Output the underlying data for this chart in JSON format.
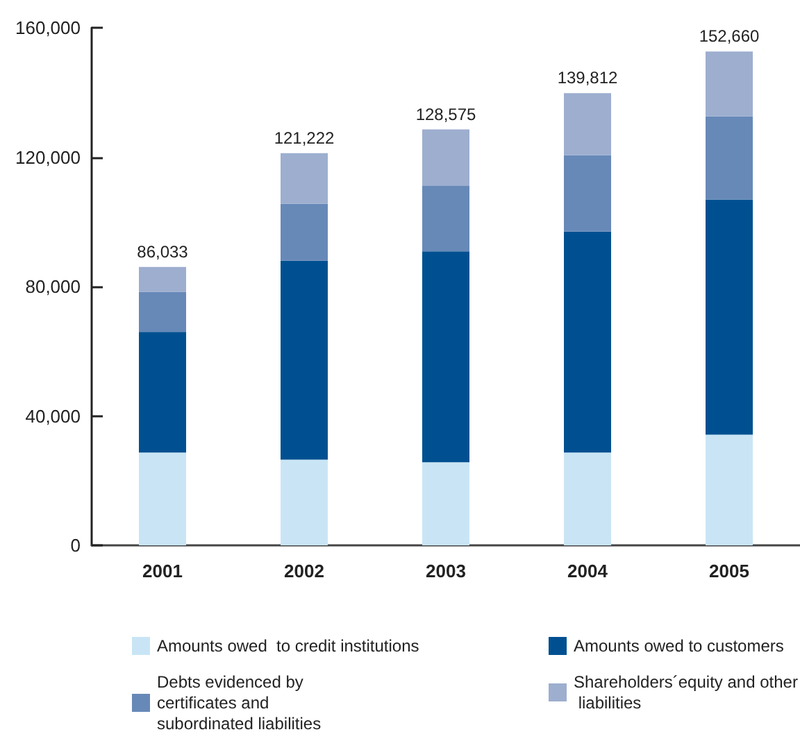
{
  "chart_data": {
    "type": "bar",
    "stacked": true,
    "categories": [
      "2001",
      "2002",
      "2003",
      "2004",
      "2005"
    ],
    "series": [
      {
        "name": "Amounts owed  to credit institutions",
        "color": "#c9e5f5",
        "values": [
          28700,
          26500,
          25700,
          28700,
          34200
        ]
      },
      {
        "name": "Amounts owed to customers",
        "color": "#005091",
        "values": [
          37300,
          61500,
          65200,
          68300,
          72700
        ]
      },
      {
        "name": "Debts evidenced by certificates and subordinated liabilities",
        "color": "#6789b8",
        "values": [
          12400,
          17600,
          20200,
          23600,
          25700
        ]
      },
      {
        "name": "Shareholders´equity and other liabilities",
        "color": "#9daecf",
        "values": [
          7633,
          15622,
          17475,
          19212,
          20060
        ]
      }
    ],
    "totals": [
      "86,033",
      "121,222",
      "128,575",
      "139,812",
      "152,660"
    ],
    "ylim": [
      0,
      160000
    ],
    "yticks": [
      0,
      {
        "value": 40000,
        "label": "40,000"
      },
      {
        "value": 80000,
        "label": "80,000"
      },
      {
        "value": 120000,
        "label": "120,000"
      },
      {
        "value": 160000,
        "label": "160,000"
      }
    ],
    "grid": false,
    "legend": "bottom"
  }
}
